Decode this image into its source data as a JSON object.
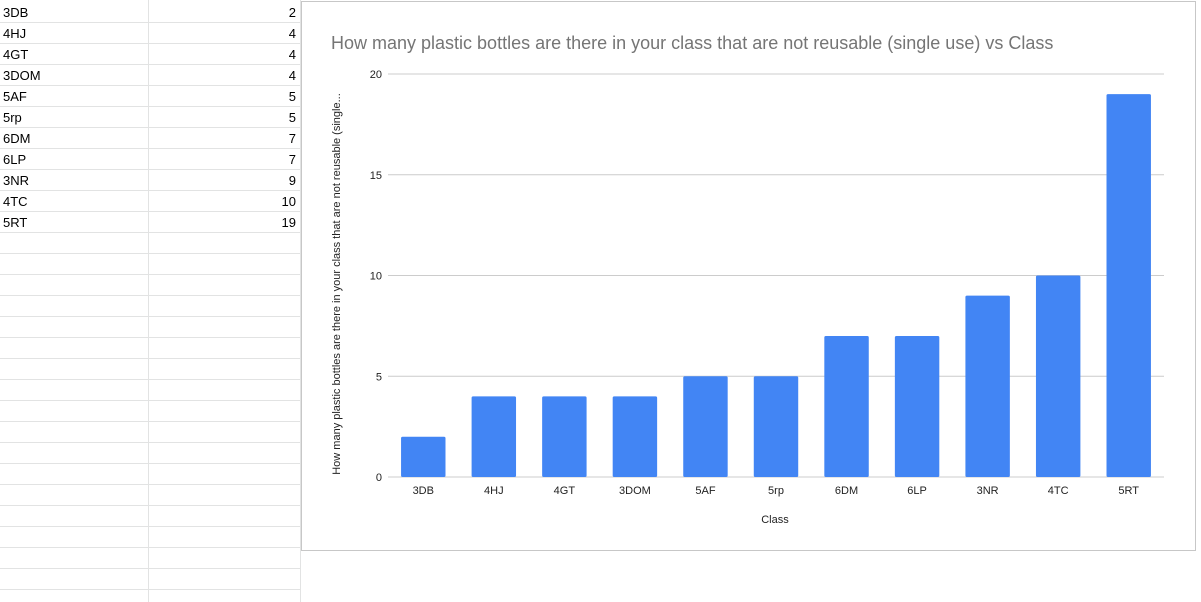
{
  "sheet": {
    "rows": [
      {
        "class": "3DB",
        "count": "2"
      },
      {
        "class": "4HJ",
        "count": "4"
      },
      {
        "class": "4GT",
        "count": "4"
      },
      {
        "class": "3DOM",
        "count": "4"
      },
      {
        "class": "5AF",
        "count": "5"
      },
      {
        "class": "5rp",
        "count": "5"
      },
      {
        "class": "6DM",
        "count": "7"
      },
      {
        "class": "6LP",
        "count": "7"
      },
      {
        "class": "3NR",
        "count": "9"
      },
      {
        "class": "4TC",
        "count": "10"
      },
      {
        "class": "5RT",
        "count": "19"
      }
    ]
  },
  "chart_data": {
    "type": "bar",
    "title": "How many plastic bottles are there in your class that are not reusable (single use) vs Class",
    "xlabel": "Class",
    "ylabel": "How many plastic bottles are there in your class that are not reusable (single...",
    "categories": [
      "3DB",
      "4HJ",
      "4GT",
      "3DOM",
      "5AF",
      "5rp",
      "6DM",
      "6LP",
      "3NR",
      "4TC",
      "5RT"
    ],
    "values": [
      2,
      4,
      4,
      4,
      5,
      5,
      7,
      7,
      9,
      10,
      19
    ],
    "ylim": [
      0,
      20
    ],
    "yticks": [
      "0",
      "5",
      "10",
      "15",
      "20"
    ],
    "grid": true,
    "legend": "none",
    "bar_color": "#4285f4"
  }
}
